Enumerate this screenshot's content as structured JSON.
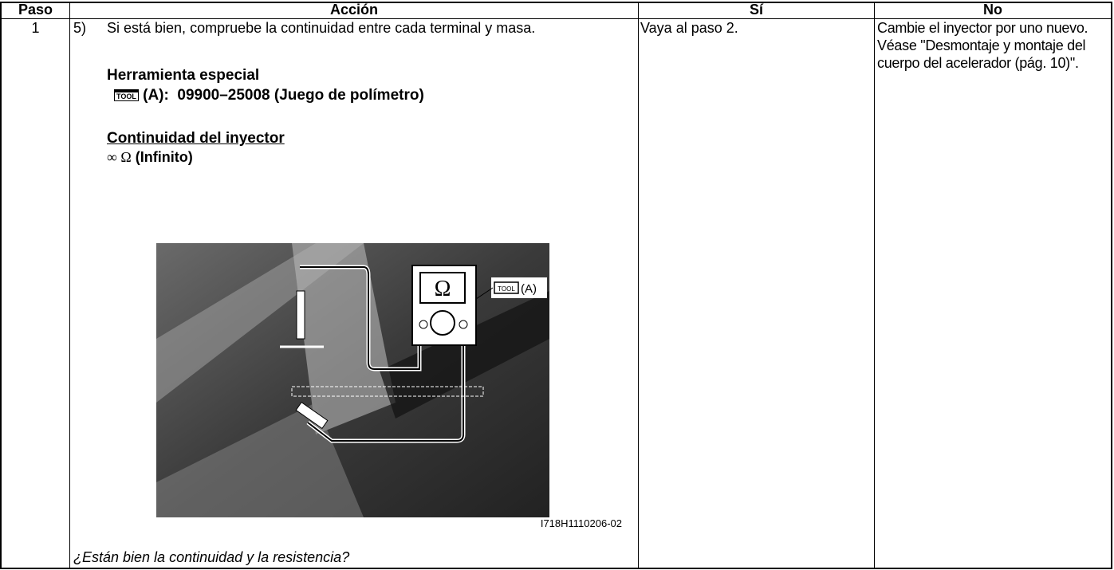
{
  "header": [
    "Paso",
    "Acción",
    "Sí",
    "No"
  ],
  "rows": [
    {
      "step": "1",
      "action": {
        "item": "5)",
        "text": "Si está bien, compruebe la continuidad entre cada terminal y masa.",
        "tool_heading": "Herramienta especial",
        "tool_icon": "TOOL",
        "tool_text": "(A):  09900–25008 (Juego de polímetro)",
        "spec_heading": "Continuidad del inyector",
        "spec_symbol": "∞ Ω",
        "spec_value": "(Infinito)",
        "figure": {
          "meter_symbol": "Ω",
          "tool_icon": "TOOL",
          "tool_label": "(A)",
          "caption": "I718H1110206-02"
        },
        "question": "¿Están bien la continuidad y la resistencia?"
      },
      "yes": "Vaya al paso 2.",
      "no": "Cambie el inyector por uno nuevo. Véase \"Desmontaje y montaje del cuerpo del acelerador (pág. 10)\"."
    }
  ]
}
